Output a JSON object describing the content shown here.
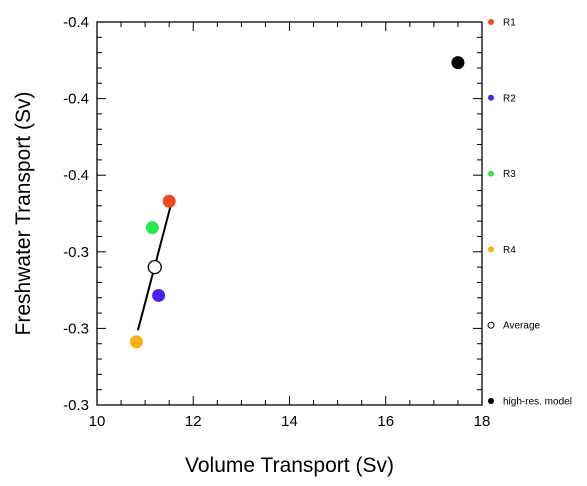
{
  "chart_data": {
    "type": "scatter",
    "xlabel": "Volume Transport (Sv)",
    "ylabel": "Freshwater Transport (Sv)",
    "xlim": [
      10,
      18
    ],
    "ylim": [
      -0.4,
      -0.3
    ],
    "x_ticks": [
      {
        "value": 10,
        "label": "10"
      },
      {
        "value": 12,
        "label": "12"
      },
      {
        "value": 14,
        "label": "14"
      },
      {
        "value": 16,
        "label": "16"
      },
      {
        "value": 18,
        "label": "18"
      }
    ],
    "y_ticks": [
      {
        "value": -0.3,
        "label": "-0.3"
      },
      {
        "value": -0.32,
        "label": "-0.3"
      },
      {
        "value": -0.34,
        "label": "-0.3"
      },
      {
        "value": -0.36,
        "label": "-0.4"
      },
      {
        "value": -0.38,
        "label": "-0.4"
      },
      {
        "value": -0.4,
        "label": "-0.4"
      }
    ],
    "grid": false,
    "legend_position": "right",
    "series": [
      {
        "name": "R1",
        "color": "#f5471f",
        "marker": "filled",
        "x": 11.5,
        "y": -0.3532
      },
      {
        "name": "R2",
        "color": "#4b1ff0",
        "marker": "filled",
        "x": 11.28,
        "y": -0.3286
      },
      {
        "name": "R3",
        "color": "#2ee64f",
        "marker": "filled",
        "x": 11.15,
        "y": -0.3463
      },
      {
        "name": "R4",
        "color": "#f5b014",
        "marker": "filled",
        "x": 10.82,
        "y": -0.3165
      },
      {
        "name": "Average",
        "color": "#000000",
        "marker": "open",
        "x": 11.2,
        "y": -0.336
      },
      {
        "name": "high-res. model",
        "color": "#000000",
        "marker": "filled",
        "x": 17.5,
        "y": -0.3894
      }
    ],
    "fit_line": {
      "x": [
        10.85,
        11.53
      ],
      "y": [
        -0.3195,
        -0.352
      ],
      "color": "#000000"
    }
  }
}
